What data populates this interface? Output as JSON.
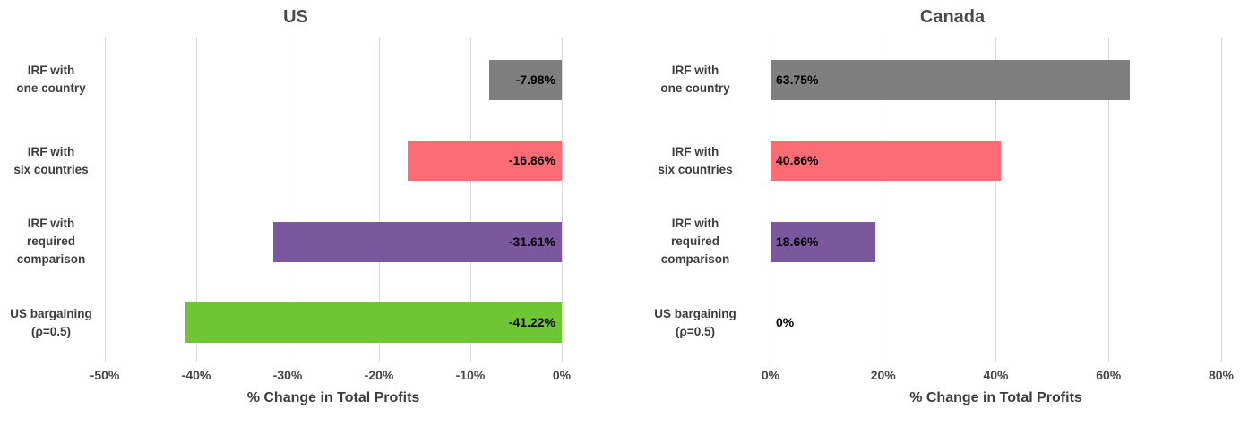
{
  "chart_data": [
    {
      "type": "bar",
      "orientation": "horizontal",
      "title": "US",
      "categories": [
        [
          "IRF with",
          "one country"
        ],
        [
          "IRF with",
          "six countries"
        ],
        [
          "IRF with",
          "required",
          "comparison"
        ],
        [
          "US bargaining",
          "(ρ=0.5)"
        ]
      ],
      "values": [
        -7.98,
        -16.86,
        -31.61,
        -41.22
      ],
      "value_labels": [
        "-7.98%",
        "-16.86%",
        "-31.61%",
        "-41.22%"
      ],
      "bar_colors": [
        "#7f7f7f",
        "#fd6c75",
        "#7b579e",
        "#6ec635"
      ],
      "xlabel": "% Change in Total Profits",
      "xlim": [
        -50,
        0
      ],
      "xticks": [
        -50,
        -40,
        -30,
        -20,
        -10,
        0
      ],
      "xtick_labels": [
        "-50%",
        "-40%",
        "-30%",
        "-20%",
        "-10%",
        "0%"
      ],
      "grid": true,
      "gridline_color": "#d9d9d9",
      "legend": "none",
      "value_label_position": "inside-base"
    },
    {
      "type": "bar",
      "orientation": "horizontal",
      "title": "Canada",
      "categories": [
        [
          "IRF with",
          "one country"
        ],
        [
          "IRF with",
          "six countries"
        ],
        [
          "IRF with",
          "required",
          "comparison"
        ],
        [
          "US bargaining",
          "(ρ=0.5)"
        ]
      ],
      "values": [
        63.75,
        40.86,
        18.66,
        0
      ],
      "value_labels": [
        "63.75%",
        "40.86%",
        "18.66%",
        "0%"
      ],
      "bar_colors": [
        "#7f7f7f",
        "#fd6c75",
        "#7b579e",
        "#6ec635"
      ],
      "xlabel": "% Change in Total Profits",
      "xlim": [
        0,
        80
      ],
      "xticks": [
        0,
        20,
        40,
        60,
        80
      ],
      "xtick_labels": [
        "0%",
        "20%",
        "40%",
        "60%",
        "80%"
      ],
      "grid": true,
      "gridline_color": "#d9d9d9",
      "legend": "none",
      "value_label_position": "inside-base"
    }
  ],
  "colors": {
    "background": "#ffffff",
    "title_text": "#4a4a4a",
    "category_text": "#3d3d3d",
    "tick_text": "#454545",
    "axis_title_text": "#3d3d3d",
    "data_label_text": "#000000",
    "gridline": "#d9d9d9",
    "bar_gray": "#7f7f7f",
    "bar_red": "#fd6c75",
    "bar_purple": "#7b579e",
    "bar_green": "#6ec635"
  }
}
